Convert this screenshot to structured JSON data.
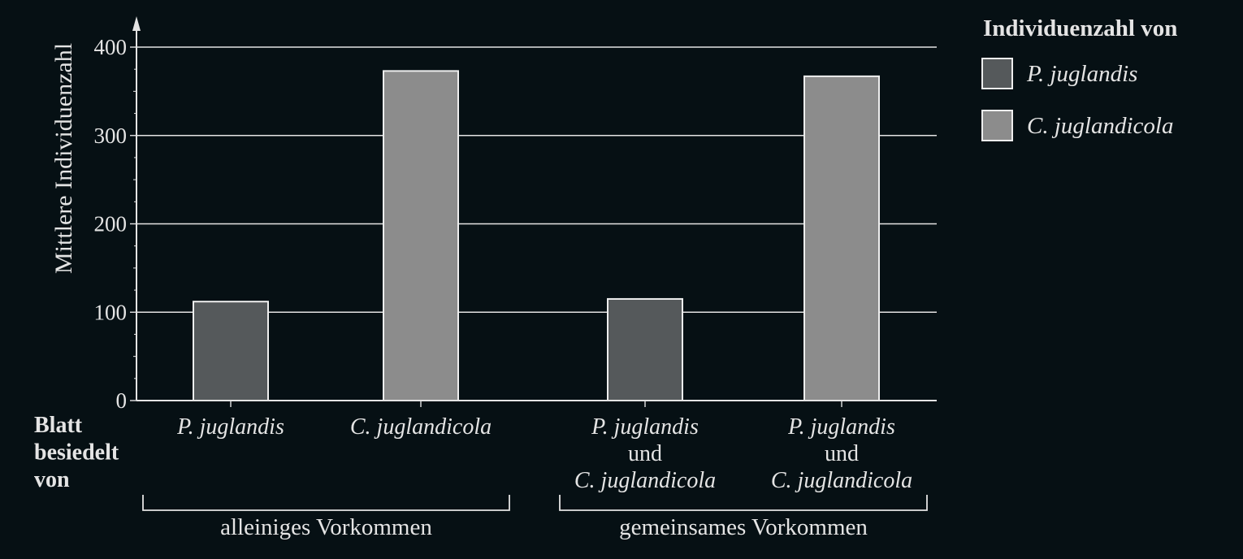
{
  "chart_data": {
    "type": "bar",
    "ylabel": "Mittlere Individuenzahl",
    "ylim": [
      0,
      400
    ],
    "yticks": [
      "0",
      "100",
      "200",
      "300",
      "400"
    ],
    "grid": true,
    "x_row_label": [
      "Blatt",
      "besiedelt",
      "von"
    ],
    "categories": [
      {
        "lines": [
          [
            "P. juglandis",
            "italic"
          ]
        ]
      },
      {
        "lines": [
          [
            "C. juglandicola",
            "italic"
          ]
        ]
      },
      {
        "lines": [
          [
            "P. juglandis",
            "italic"
          ],
          [
            "und",
            "normal"
          ],
          [
            "C. juglandicola",
            "italic"
          ]
        ]
      },
      {
        "lines": [
          [
            "P. juglandis",
            "italic"
          ],
          [
            "und",
            "normal"
          ],
          [
            "C. juglandicola",
            "italic"
          ]
        ]
      }
    ],
    "bars": [
      {
        "category": 0,
        "series": 0,
        "value": 112
      },
      {
        "category": 1,
        "series": 1,
        "value": 373
      },
      {
        "category": 2,
        "series": 0,
        "value": 115
      },
      {
        "category": 3,
        "series": 1,
        "value": 367
      }
    ],
    "groups": [
      {
        "label": "alleiniges Vorkommen",
        "categories": [
          0,
          1
        ]
      },
      {
        "label": "gemeinsames Vorkommen",
        "categories": [
          2,
          3
        ]
      }
    ],
    "legend": {
      "title": "Individuenzahl von",
      "position": "top-right",
      "series": [
        {
          "name": "P. juglandis",
          "color": "#55595b"
        },
        {
          "name": "C. juglandicola",
          "color": "#8c8c8c"
        }
      ]
    },
    "colors": {
      "background": "#061014",
      "axis": "#e4e4e4",
      "bar_stroke": "#eeeeee"
    }
  }
}
